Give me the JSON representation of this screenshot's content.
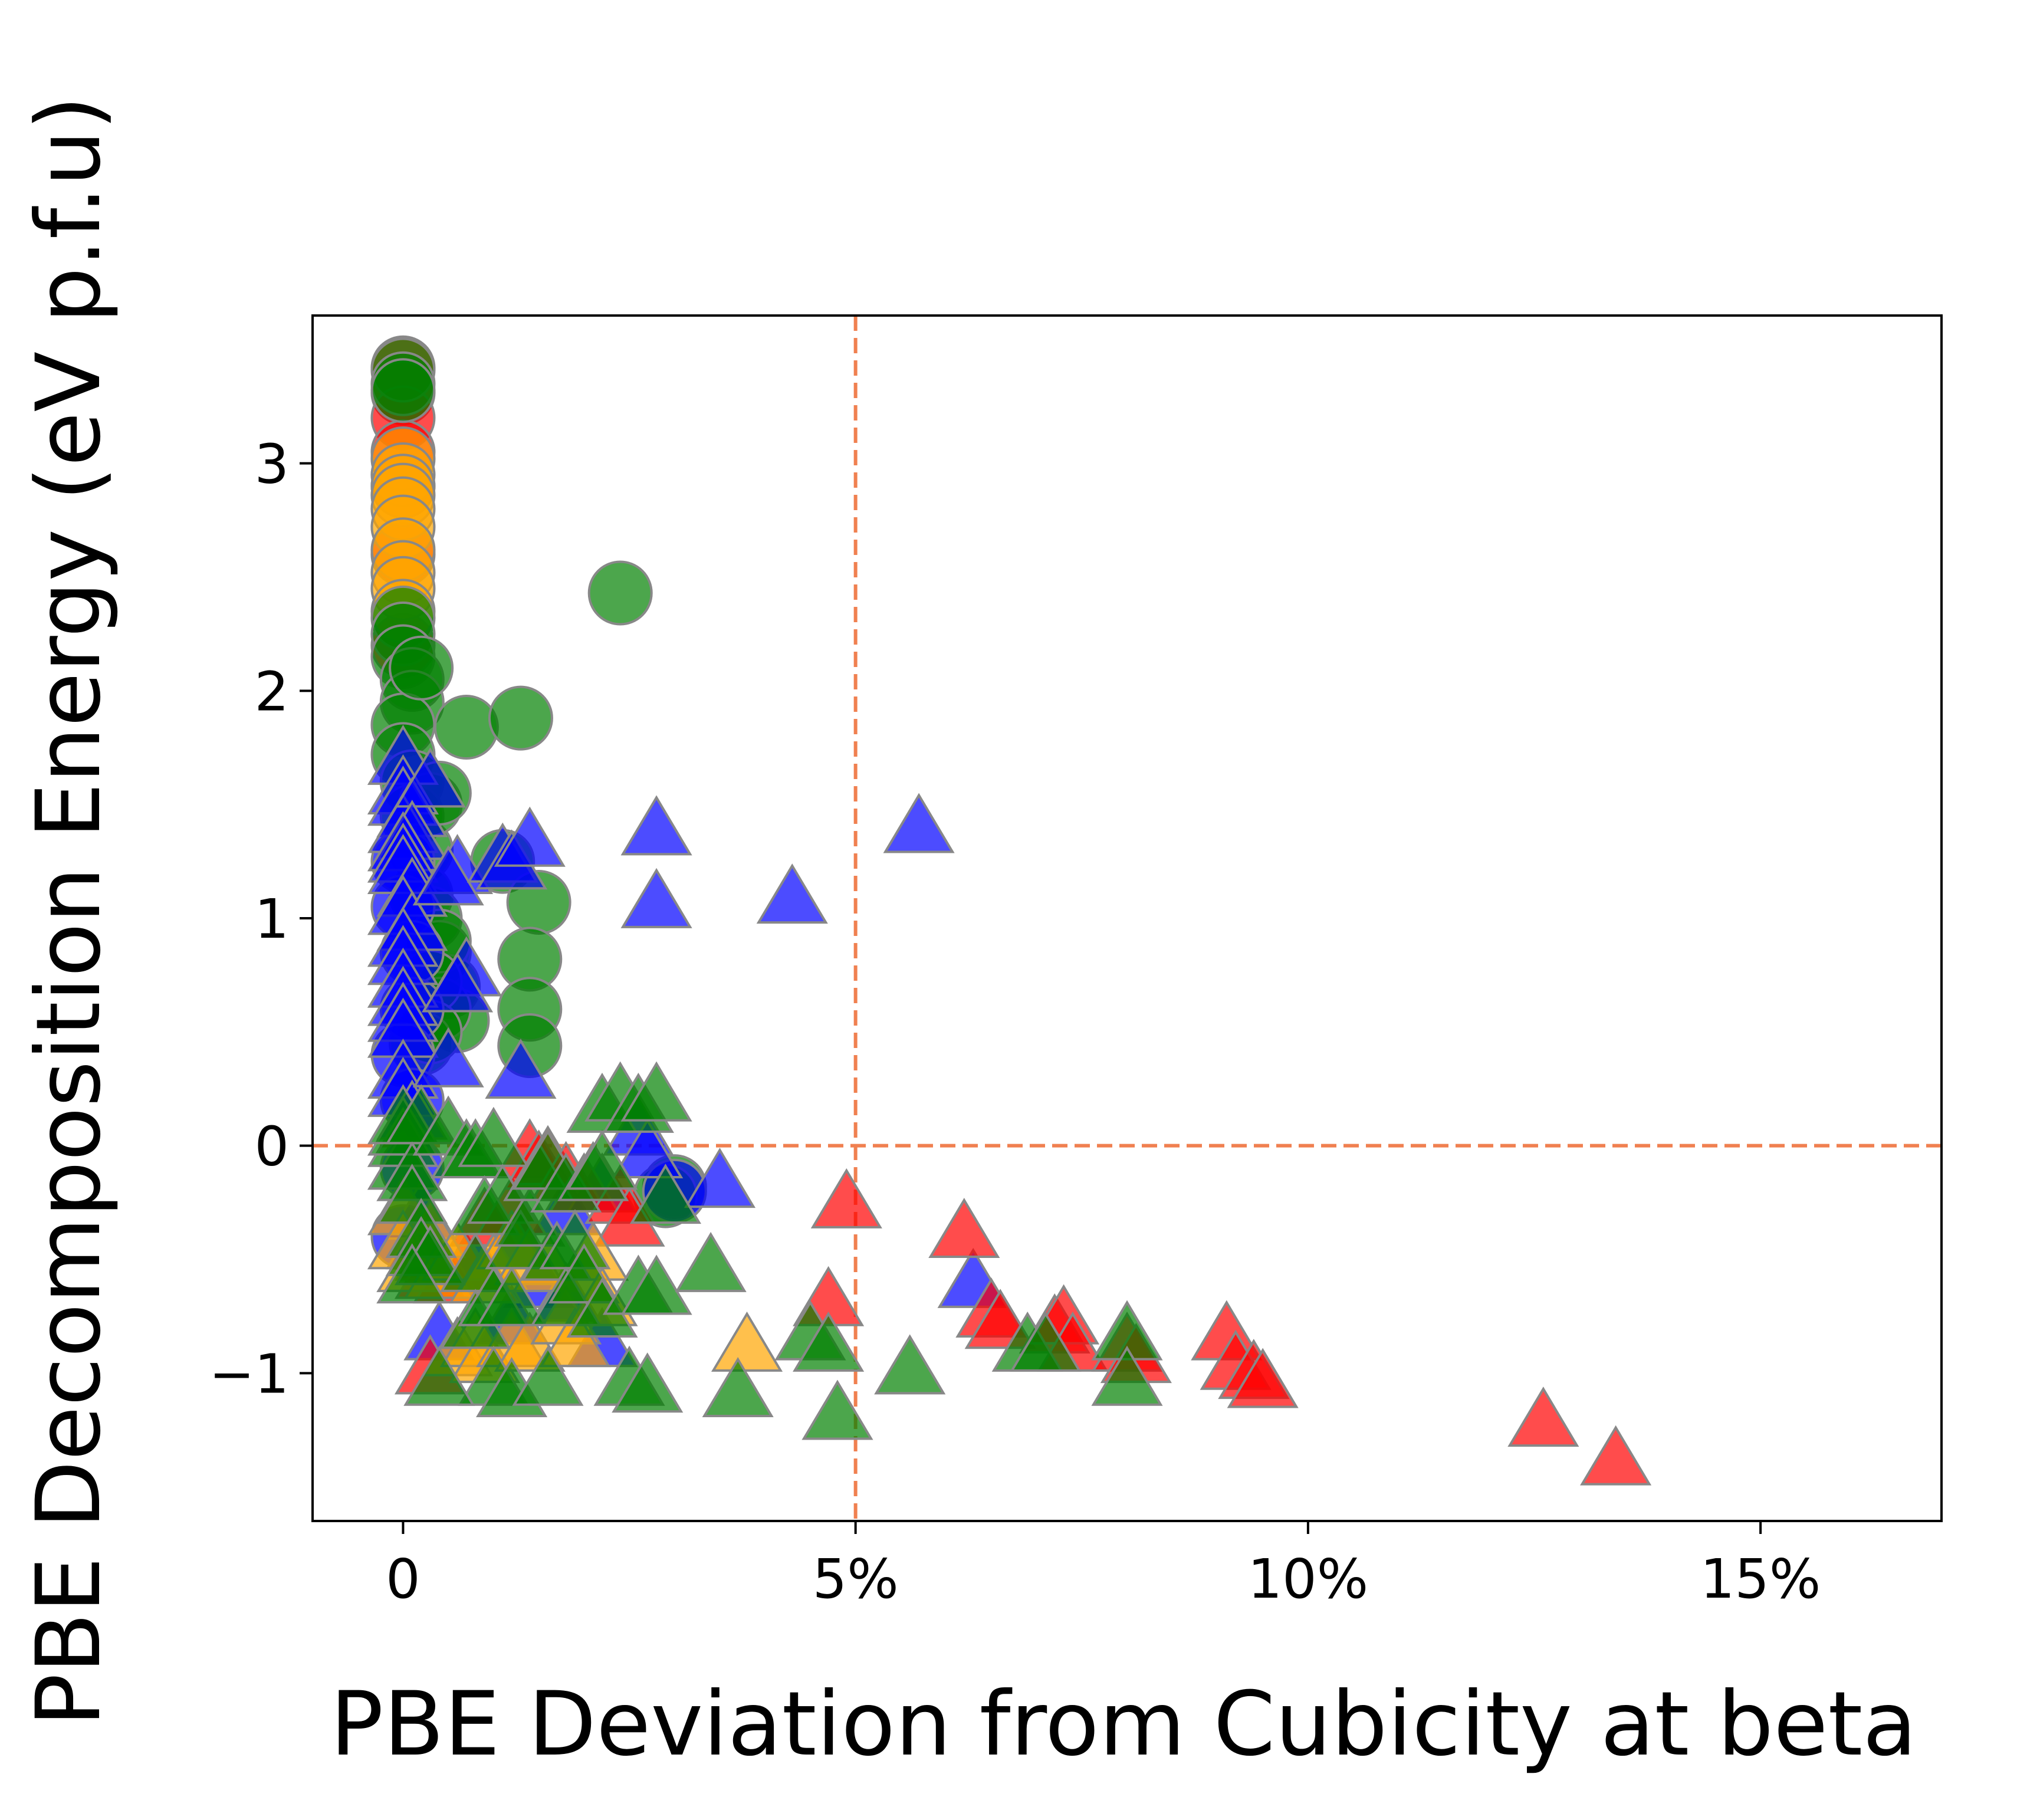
{
  "chart_data": {
    "type": "scatter",
    "title": "",
    "xlabel": "PBE Deviation from Cubicity at beta",
    "ylabel": "PBE Decomposition Energy (eV p.f.u)",
    "xlim": [
      -0.01,
      0.17
    ],
    "ylim": [
      -1.65,
      3.65
    ],
    "x_ticks": [
      {
        "value": 0,
        "label": "0"
      },
      {
        "value": 0.05,
        "label": "5%"
      },
      {
        "value": 0.1,
        "label": "10%"
      },
      {
        "value": 0.15,
        "label": "15%"
      }
    ],
    "y_ticks": [
      {
        "value": -1,
        "label": "−1"
      },
      {
        "value": 0,
        "label": "0"
      },
      {
        "value": 1,
        "label": "1"
      },
      {
        "value": 2,
        "label": "2"
      },
      {
        "value": 3,
        "label": "3"
      }
    ],
    "grid": false,
    "reference_lines": [
      {
        "orientation": "vertical",
        "value": 0.05,
        "color": "#f08050",
        "style": "dashed"
      },
      {
        "orientation": "horizontal",
        "value": 0,
        "color": "#f08050",
        "style": "dashed"
      }
    ],
    "marker_edge_color": "#888888",
    "series": [
      {
        "color": "#ff0000",
        "marker": "circle",
        "points": [
          [
            0,
            3.42
          ],
          [
            0,
            3.31
          ],
          [
            0,
            3.2
          ],
          [
            0,
            3.05
          ],
          [
            0,
            2.9
          ],
          [
            0,
            2.6
          ],
          [
            0,
            2.2
          ]
        ]
      },
      {
        "color": "#ffa500",
        "marker": "circle",
        "points": [
          [
            0,
            3.02
          ],
          [
            0,
            2.95
          ],
          [
            0,
            2.9
          ],
          [
            0,
            2.86
          ],
          [
            0,
            2.8
          ],
          [
            0,
            2.72
          ],
          [
            0,
            2.62
          ],
          [
            0,
            2.52
          ],
          [
            0,
            2.45
          ],
          [
            0,
            2.35
          ]
        ]
      },
      {
        "color": "#008000",
        "marker": "circle",
        "points": [
          [
            0,
            3.41
          ],
          [
            0,
            3.35
          ],
          [
            0,
            3.32
          ],
          [
            0,
            2.32
          ],
          [
            0,
            2.25
          ],
          [
            0,
            2.15
          ],
          [
            0.001,
            2.05
          ],
          [
            0.001,
            1.95
          ],
          [
            0,
            1.85
          ],
          [
            0,
            1.72
          ],
          [
            0.001,
            1.6
          ],
          [
            0.001,
            1.45
          ],
          [
            0.002,
            1.3
          ],
          [
            0.002,
            1.1
          ],
          [
            0.003,
            1.0
          ],
          [
            0.004,
            0.85
          ],
          [
            0.005,
            0.7
          ],
          [
            0.006,
            0.55
          ],
          [
            0.004,
            0.6
          ],
          [
            0.002,
            0.45
          ],
          [
            0.002,
            2.1
          ],
          [
            0.003,
            1.5
          ],
          [
            0.004,
            1.55
          ],
          [
            0.007,
            1.84
          ],
          [
            0.013,
            1.88
          ],
          [
            0.024,
            2.43
          ],
          [
            0.011,
            1.25
          ],
          [
            0.015,
            1.07
          ],
          [
            0.014,
            0.82
          ],
          [
            0.014,
            0.6
          ],
          [
            0.014,
            0.44
          ],
          [
            0.004,
            0.9
          ],
          [
            0.003,
            0.72
          ],
          [
            0.003,
            0.5
          ],
          [
            0.03,
            -0.18
          ],
          [
            0.029,
            -0.22
          ]
        ]
      },
      {
        "color": "#0000ff",
        "marker": "circle",
        "points": [
          [
            0,
            1.25
          ],
          [
            0,
            1.05
          ],
          [
            0.001,
            0.85
          ],
          [
            0.001,
            0.6
          ],
          [
            0,
            0.4
          ],
          [
            0.001,
            0.2
          ],
          [
            0.001,
            -0.1
          ],
          [
            0.03,
            -0.2
          ],
          [
            0,
            -0.4
          ]
        ]
      },
      {
        "color": "#0000ff",
        "marker": "triangle",
        "points": [
          [
            0,
            1.68
          ],
          [
            0,
            1.55
          ],
          [
            0,
            1.5
          ],
          [
            0.001,
            1.45
          ],
          [
            0,
            1.38
          ],
          [
            0.003,
            1.58
          ],
          [
            0.001,
            1.35
          ],
          [
            0,
            1.3
          ],
          [
            0,
            1.25
          ],
          [
            0,
            1.2
          ],
          [
            0.001,
            1.1
          ],
          [
            0,
            1.02
          ],
          [
            0.001,
            0.95
          ],
          [
            0,
            0.88
          ],
          [
            0,
            0.8
          ],
          [
            0,
            0.7
          ],
          [
            0,
            0.62
          ],
          [
            0,
            0.55
          ],
          [
            0,
            0.48
          ],
          [
            0,
            0.3
          ],
          [
            0,
            0.22
          ],
          [
            0.001,
            0.12
          ],
          [
            0.006,
            1.2
          ],
          [
            0.005,
            1.15
          ],
          [
            0.007,
            0.75
          ],
          [
            0.006,
            0.68
          ],
          [
            0.005,
            0.35
          ],
          [
            0.011,
            1.25
          ],
          [
            0.012,
            1.22
          ],
          [
            0.014,
            1.32
          ],
          [
            0.013,
            0.3
          ],
          [
            0.028,
            1.37
          ],
          [
            0.028,
            1.05
          ],
          [
            0.043,
            1.07
          ],
          [
            0.057,
            1.38
          ],
          [
            0.035,
            -0.18
          ],
          [
            0.063,
            -0.62
          ],
          [
            0.026,
            0.05
          ],
          [
            0.027,
            -0.05
          ],
          [
            0.002,
            -0.45
          ],
          [
            0.003,
            -0.5
          ],
          [
            0.002,
            -0.32
          ],
          [
            0.015,
            -0.62
          ],
          [
            0.008,
            -0.55
          ],
          [
            0.013,
            -0.45
          ],
          [
            0.018,
            -0.3
          ],
          [
            0.022,
            -0.2
          ],
          [
            0.004,
            -0.85
          ],
          [
            0.022,
            -0.88
          ],
          [
            0.012,
            -0.78
          ],
          [
            0.018,
            -0.68
          ]
        ]
      },
      {
        "color": "#ff0000",
        "marker": "triangle",
        "points": [
          [
            0.003,
            -0.5
          ],
          [
            0.003,
            -0.58
          ],
          [
            0.005,
            -0.6
          ],
          [
            0.007,
            -0.55
          ],
          [
            0.009,
            -0.35
          ],
          [
            0.012,
            -0.3
          ],
          [
            0.014,
            -0.05
          ],
          [
            0.015,
            -0.1
          ],
          [
            0.016,
            -0.08
          ],
          [
            0.018,
            -0.15
          ],
          [
            0.02,
            -0.2
          ],
          [
            0.024,
            -0.25
          ],
          [
            0.025,
            -0.35
          ],
          [
            0.003,
            -1.0
          ],
          [
            0.049,
            -0.27
          ],
          [
            0.047,
            -0.7
          ],
          [
            0.062,
            -0.4
          ],
          [
            0.065,
            -0.75
          ],
          [
            0.066,
            -0.8
          ],
          [
            0.072,
            -0.82
          ],
          [
            0.073,
            -0.78
          ],
          [
            0.074,
            -0.9
          ],
          [
            0.08,
            -0.9
          ],
          [
            0.081,
            -0.95
          ],
          [
            0.091,
            -0.85
          ],
          [
            0.092,
            -0.98
          ],
          [
            0.094,
            -1.02
          ],
          [
            0.095,
            -1.06
          ],
          [
            0.126,
            -1.23
          ],
          [
            0.134,
            -1.4
          ]
        ]
      },
      {
        "color": "#ffa500",
        "marker": "triangle",
        "points": [
          [
            0,
            -0.3
          ],
          [
            0,
            -0.45
          ],
          [
            0.001,
            -0.55
          ],
          [
            0.003,
            -0.4
          ],
          [
            0.004,
            -0.58
          ],
          [
            0.006,
            -0.5
          ],
          [
            0.006,
            -0.92
          ],
          [
            0.008,
            -0.88
          ],
          [
            0.009,
            -0.95
          ],
          [
            0.009,
            -0.6
          ],
          [
            0.01,
            -0.55
          ],
          [
            0.012,
            -0.45
          ],
          [
            0.012,
            -0.88
          ],
          [
            0.014,
            -0.9
          ],
          [
            0.014,
            -0.52
          ],
          [
            0.016,
            -0.55
          ],
          [
            0.018,
            -0.78
          ],
          [
            0.019,
            -0.88
          ],
          [
            0.02,
            -0.6
          ],
          [
            0.021,
            -0.5
          ],
          [
            0.022,
            -0.7
          ],
          [
            0.038,
            -0.9
          ]
        ]
      },
      {
        "color": "#008000",
        "marker": "triangle",
        "points": [
          [
            0,
            -0.1
          ],
          [
            0,
            0.0
          ],
          [
            0,
            0.05
          ],
          [
            0,
            0.1
          ],
          [
            0.001,
            -0.15
          ],
          [
            0.001,
            -0.25
          ],
          [
            0.002,
            0.1
          ],
          [
            0.002,
            -0.4
          ],
          [
            0.002,
            -0.48
          ],
          [
            0.003,
            -0.52
          ],
          [
            0.005,
            0.05
          ],
          [
            0.007,
            -0.05
          ],
          [
            0.008,
            -0.55
          ],
          [
            0.008,
            -0.8
          ],
          [
            0.008,
            -0.05
          ],
          [
            0.009,
            -0.3
          ],
          [
            0.01,
            0.0
          ],
          [
            0.01,
            -1.05
          ],
          [
            0.01,
            -0.7
          ],
          [
            0.011,
            -0.25
          ],
          [
            0.012,
            -1.1
          ],
          [
            0.012,
            -0.7
          ],
          [
            0.013,
            -0.45
          ],
          [
            0.014,
            -0.35
          ],
          [
            0.015,
            -0.15
          ],
          [
            0.016,
            -0.1
          ],
          [
            0.017,
            -0.5
          ],
          [
            0.018,
            -0.7
          ],
          [
            0.018,
            -0.2
          ],
          [
            0.019,
            -0.45
          ],
          [
            0.02,
            -0.6
          ],
          [
            0.021,
            -0.15
          ],
          [
            0.022,
            -0.75
          ],
          [
            0.022,
            -0.1
          ],
          [
            0.022,
            0.15
          ],
          [
            0.024,
            0.2
          ],
          [
            0.025,
            -1.05
          ],
          [
            0.026,
            -0.65
          ],
          [
            0.026,
            0.15
          ],
          [
            0.027,
            -1.08
          ],
          [
            0.028,
            -0.65
          ],
          [
            0.028,
            0.2
          ],
          [
            0.029,
            -0.25
          ],
          [
            0.034,
            -0.55
          ],
          [
            0.037,
            -1.1
          ],
          [
            0.045,
            -0.85
          ],
          [
            0.047,
            -0.9
          ],
          [
            0.048,
            -1.2
          ],
          [
            0.056,
            -1.0
          ],
          [
            0.069,
            -0.9
          ],
          [
            0.071,
            -0.9
          ],
          [
            0.08,
            -0.85
          ],
          [
            0.08,
            -1.05
          ],
          [
            0.004,
            -1.05
          ],
          [
            0.016,
            -1.05
          ],
          [
            0.001,
            -0.6
          ]
        ]
      }
    ]
  }
}
